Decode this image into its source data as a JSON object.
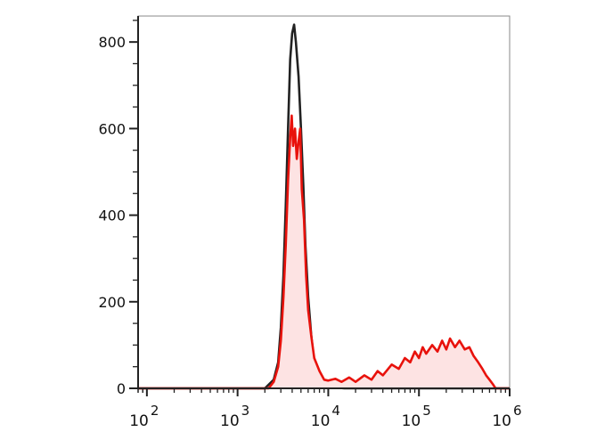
{
  "chart_data": {
    "type": "area",
    "title": "",
    "xlabel": "",
    "ylabel": "",
    "x_scale": "log",
    "xlim": [
      80,
      1000000
    ],
    "ylim": [
      0,
      860
    ],
    "x_tick_labels": [
      {
        "base": "10",
        "exp": "2",
        "value": 100
      },
      {
        "base": "10",
        "exp": "3",
        "value": 1000
      },
      {
        "base": "10",
        "exp": "4",
        "value": 10000
      },
      {
        "base": "10",
        "exp": "5",
        "value": 100000
      },
      {
        "base": "10",
        "exp": "6",
        "value": 1000000
      }
    ],
    "y_ticks": [
      0,
      200,
      400,
      600,
      800
    ],
    "y_tick_labels": [
      "0",
      "200",
      "400",
      "600",
      "800"
    ],
    "grid": false,
    "legend": "none",
    "series": [
      {
        "color": "#222222",
        "fill": "none",
        "points": [
          [
            80,
            0
          ],
          [
            1000,
            0
          ],
          [
            2000,
            0
          ],
          [
            2500,
            20
          ],
          [
            2800,
            60
          ],
          [
            3000,
            140
          ],
          [
            3200,
            260
          ],
          [
            3400,
            420
          ],
          [
            3600,
            600
          ],
          [
            3800,
            760
          ],
          [
            4000,
            820
          ],
          [
            4200,
            840
          ],
          [
            4400,
            800
          ],
          [
            4700,
            720
          ],
          [
            5000,
            600
          ],
          [
            5300,
            470
          ],
          [
            5600,
            330
          ],
          [
            6000,
            210
          ],
          [
            6500,
            120
          ],
          [
            7000,
            60
          ],
          [
            8000,
            25
          ],
          [
            9000,
            10
          ],
          [
            10000,
            5
          ],
          [
            12000,
            2
          ],
          [
            15000,
            0
          ],
          [
            1000000,
            0
          ]
        ]
      },
      {
        "color": "#e8120c",
        "fill": "#fde3e3",
        "points": [
          [
            80,
            0
          ],
          [
            1000,
            0
          ],
          [
            2200,
            0
          ],
          [
            2500,
            15
          ],
          [
            2800,
            50
          ],
          [
            3000,
            110
          ],
          [
            3200,
            210
          ],
          [
            3400,
            330
          ],
          [
            3600,
            480
          ],
          [
            3800,
            580
          ],
          [
            3950,
            630
          ],
          [
            4100,
            560
          ],
          [
            4300,
            600
          ],
          [
            4500,
            530
          ],
          [
            4700,
            570
          ],
          [
            4900,
            600
          ],
          [
            5100,
            460
          ],
          [
            5400,
            390
          ],
          [
            5700,
            260
          ],
          [
            6000,
            180
          ],
          [
            6500,
            120
          ],
          [
            7000,
            70
          ],
          [
            8000,
            40
          ],
          [
            9000,
            20
          ],
          [
            10000,
            18
          ],
          [
            12000,
            22
          ],
          [
            14000,
            15
          ],
          [
            17000,
            25
          ],
          [
            20000,
            15
          ],
          [
            25000,
            30
          ],
          [
            30000,
            20
          ],
          [
            35000,
            40
          ],
          [
            40000,
            30
          ],
          [
            50000,
            55
          ],
          [
            60000,
            45
          ],
          [
            70000,
            70
          ],
          [
            80000,
            60
          ],
          [
            90000,
            85
          ],
          [
            100000,
            70
          ],
          [
            110000,
            95
          ],
          [
            120000,
            80
          ],
          [
            140000,
            100
          ],
          [
            160000,
            85
          ],
          [
            180000,
            110
          ],
          [
            200000,
            90
          ],
          [
            220000,
            115
          ],
          [
            250000,
            95
          ],
          [
            280000,
            110
          ],
          [
            320000,
            90
          ],
          [
            360000,
            95
          ],
          [
            400000,
            75
          ],
          [
            450000,
            60
          ],
          [
            500000,
            45
          ],
          [
            550000,
            30
          ],
          [
            600000,
            20
          ],
          [
            650000,
            10
          ],
          [
            700000,
            0
          ],
          [
            1000000,
            0
          ]
        ]
      }
    ]
  }
}
